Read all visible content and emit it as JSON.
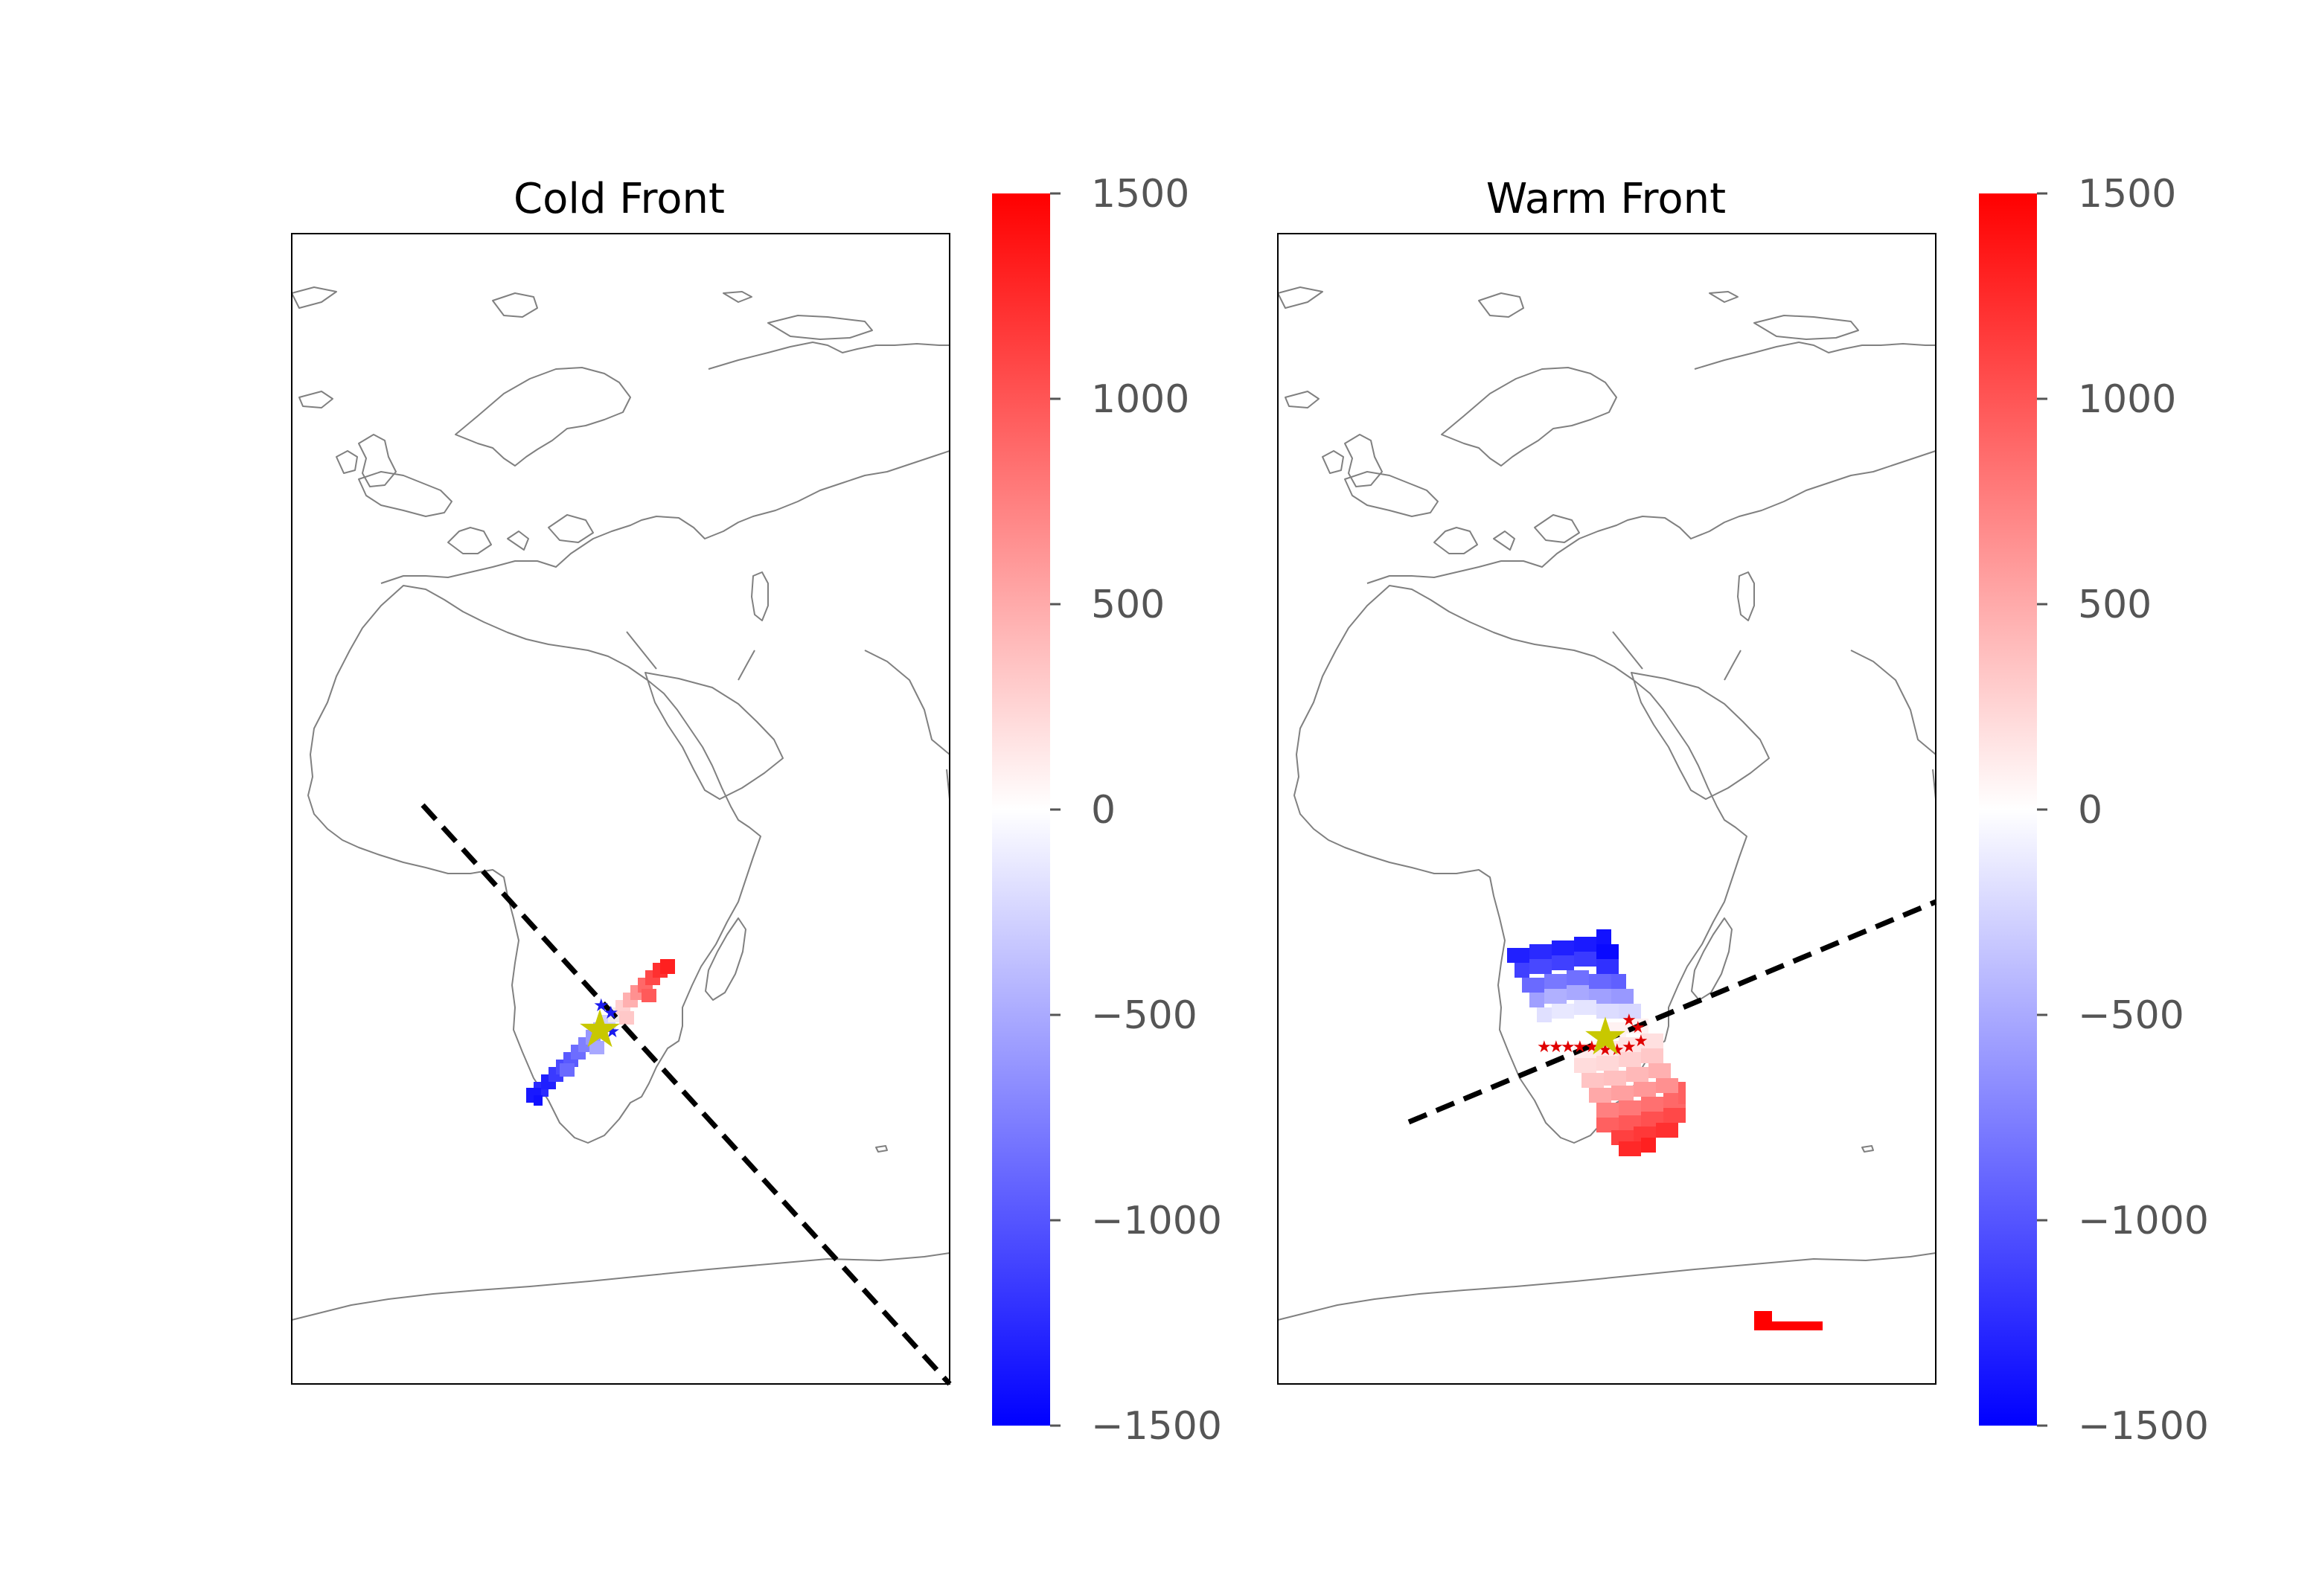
{
  "chart_data": [
    {
      "type": "heatmap",
      "title": "Cold Front",
      "colorbar": {
        "ticks": [
          1500,
          1000,
          500,
          0,
          -500,
          -1000,
          -1500
        ],
        "tick_labels": [
          "1500",
          "1000",
          "500",
          "0",
          "−500",
          "−1000",
          "−1500"
        ],
        "range": [
          -1500,
          1500
        ],
        "colormap": "bwr",
        "colors": {
          "low": "#0000ff",
          "mid": "#ffffff",
          "high": "#ff0000"
        }
      },
      "grid": false,
      "front_line_style": "dashed black",
      "markers": [
        "yellow star",
        "small blue stars"
      ]
    },
    {
      "type": "heatmap",
      "title": "Warm Front",
      "colorbar": {
        "ticks": [
          1500,
          1000,
          500,
          0,
          -500,
          -1000,
          -1500
        ],
        "tick_labels": [
          "1500",
          "1000",
          "500",
          "0",
          "−500",
          "−1000",
          "−1500"
        ],
        "range": [
          -1500,
          1500
        ],
        "colormap": "bwr",
        "colors": {
          "low": "#0000ff",
          "mid": "#ffffff",
          "high": "#ff0000"
        }
      },
      "grid": false,
      "front_line_style": "dashed black",
      "markers": [
        "yellow star",
        "small red stars"
      ]
    }
  ]
}
